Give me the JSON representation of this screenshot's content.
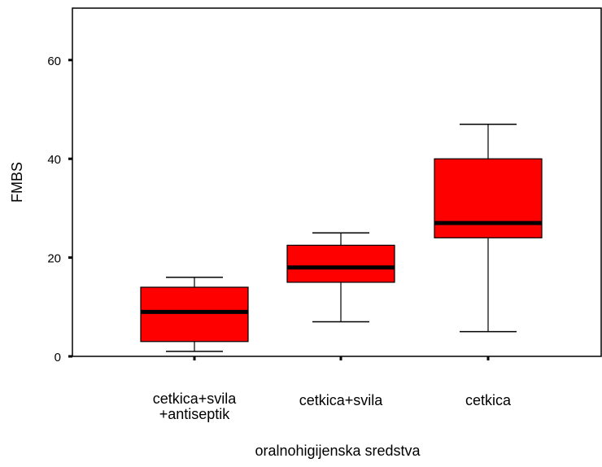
{
  "chart_data": {
    "type": "boxplot",
    "xlabel": "oralnohigijenska sredstva",
    "ylabel": "FMBS",
    "ylim": [
      0,
      70
    ],
    "yticks": [
      0,
      20,
      40,
      60
    ],
    "grid": false,
    "box_color": "#ff0000",
    "median_color": "#000000",
    "categories": [
      {
        "label_lines": [
          "cetkica+svila",
          "+antiseptik"
        ],
        "whisker_low": 1,
        "q1": 3,
        "median": 9,
        "q3": 14,
        "whisker_high": 16
      },
      {
        "label_lines": [
          "cetkica+svila"
        ],
        "whisker_low": 7,
        "q1": 15,
        "median": 18,
        "q3": 22.5,
        "whisker_high": 25
      },
      {
        "label_lines": [
          "cetkica"
        ],
        "whisker_low": 5,
        "q1": 24,
        "median": 27,
        "q3": 40,
        "whisker_high": 47
      }
    ]
  }
}
